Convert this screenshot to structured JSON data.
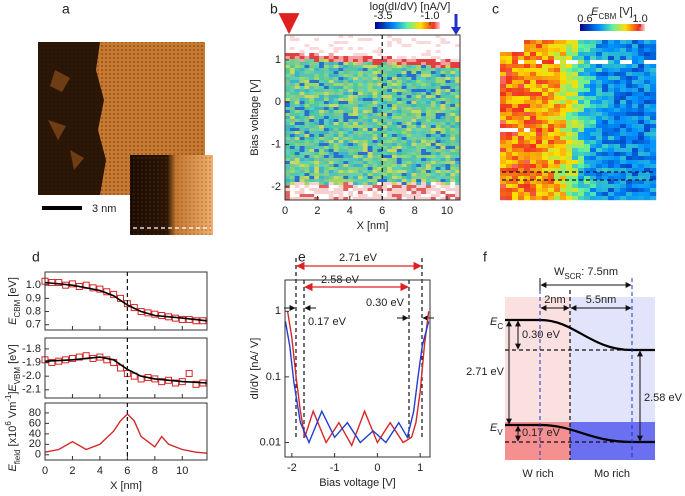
{
  "panel_labels": [
    "a",
    "b",
    "c",
    "d",
    "e",
    "f"
  ],
  "panel_a": {
    "scale_bar": "3 nm"
  },
  "panel_c": {
    "colorbar": {
      "title": [
        [
          "E",
          "italic"
        ],
        [
          "CBM",
          "sub"
        ],
        [
          " [V]",
          "normal"
        ]
      ],
      "clim": [
        0.564,
        1.036
      ],
      "ticks": [
        0.6,
        {
          "value": 1,
          "label": "1.0"
        }
      ]
    }
  },
  "chart_data": [
    {
      "type": "heatmap",
      "xlabel": "X [nm]",
      "ylabel": "Bias voltage [V]",
      "xlim": [
        0,
        10.8
      ],
      "ylim": [
        -2.31,
        1.59
      ],
      "xticks": [
        0,
        2,
        4,
        6,
        8,
        10
      ],
      "yticks": [
        1,
        0,
        -1,
        -2
      ],
      "vline": 6,
      "colorbar": {
        "title": "log(dI/dV) [nA/V]",
        "clim": [
          -3.93,
          -0.47
        ],
        "ticks": [
          -3.5,
          {
            "value": -1,
            "label": "-1.0"
          }
        ]
      }
    },
    {
      "type": "scatter",
      "ylabel": [
        [
          "E",
          "italic"
        ],
        [
          "CBM",
          "sub"
        ],
        [
          " [eV]",
          "normal"
        ]
      ],
      "xlim": [
        0,
        11.8
      ],
      "ylim": [
        0.66,
        1.1
      ],
      "yticks": [
        {
          "value": 1,
          "label": "1.0"
        },
        0.9,
        0.8,
        0.7
      ],
      "vline": 6,
      "color": "#d62728",
      "x": [
        0,
        0.5,
        1,
        1.5,
        2,
        2.5,
        3,
        3.5,
        4,
        4.5,
        5,
        5.5,
        6,
        6.5,
        7,
        7.5,
        8,
        8.5,
        9,
        9.5,
        10,
        10.5,
        11,
        11.5
      ],
      "values": [
        1.03,
        1.02,
        1.02,
        1.0,
        1.01,
        0.99,
        1.0,
        0.98,
        0.97,
        0.95,
        0.93,
        0.9,
        0.86,
        0.83,
        0.8,
        0.79,
        0.78,
        0.77,
        0.76,
        0.75,
        0.74,
        0.74,
        0.73,
        0.73
      ],
      "fit": {
        "color": "#000000",
        "x": [
          0,
          2,
          4,
          5,
          6,
          7,
          8,
          10,
          11.8
        ],
        "values": [
          1.02,
          1.0,
          0.96,
          0.92,
          0.85,
          0.8,
          0.77,
          0.75,
          0.73
        ]
      }
    },
    {
      "type": "scatter",
      "ylabel": [
        [
          "E",
          "italic"
        ],
        [
          "VBM",
          "sub"
        ],
        [
          " [eV]",
          "normal"
        ]
      ],
      "xlim": [
        0,
        11.8
      ],
      "ylim": [
        -2.16,
        -1.72
      ],
      "yticks": [
        -1.8,
        -1.9,
        {
          "value": -2,
          "label": "-2.0"
        },
        -2.1
      ],
      "vline": 6,
      "color": "#d62728",
      "x": [
        0,
        0.5,
        1,
        1.5,
        2,
        2.5,
        3,
        3.5,
        4,
        4.5,
        5,
        5.5,
        6,
        6.5,
        7,
        7.5,
        8,
        8.5,
        9,
        9.5,
        10,
        10.5,
        11,
        11.5
      ],
      "values": [
        -1.88,
        -1.9,
        -1.89,
        -1.88,
        -1.87,
        -1.86,
        -1.85,
        -1.87,
        -1.86,
        -1.88,
        -1.9,
        -1.94,
        -1.98,
        -2.0,
        -2.02,
        -2.01,
        -2.02,
        -2.04,
        -2.03,
        -2.05,
        -2.04,
        -1.98,
        -2.06,
        -2.05
      ],
      "fit": {
        "color": "#000000",
        "x": [
          0,
          2,
          4,
          5,
          6,
          7,
          8,
          10,
          11.8
        ],
        "values": [
          -1.89,
          -1.88,
          -1.86,
          -1.88,
          -1.95,
          -2.0,
          -2.02,
          -2.04,
          -2.05
        ]
      }
    },
    {
      "type": "line",
      "xlabel": "X [nm]",
      "ylabel": [
        [
          "E",
          "italic"
        ],
        [
          "field",
          "sub"
        ],
        [
          " [x10",
          "normal"
        ],
        [
          "6",
          "sup"
        ],
        [
          " Vm",
          "normal"
        ],
        [
          "-1",
          "sup"
        ],
        [
          "]",
          "normal"
        ]
      ],
      "xlim": [
        0,
        11.8
      ],
      "ylim": [
        -10,
        99
      ],
      "xticks": [
        0,
        2,
        4,
        6,
        8,
        10
      ],
      "yticks": [
        0,
        20,
        40,
        60,
        80
      ],
      "vline": 6,
      "series": [
        {
          "color": "#d62728",
          "x": [
            0,
            1,
            2,
            3,
            4,
            5,
            5.5,
            6,
            6.5,
            7,
            7.5,
            8,
            8.5,
            9,
            10,
            11,
            11.8
          ],
          "values": [
            5,
            10,
            25,
            10,
            20,
            45,
            65,
            78,
            65,
            35,
            25,
            15,
            35,
            20,
            10,
            5,
            3
          ]
        }
      ]
    },
    {
      "type": "line",
      "log_y": true,
      "xlabel": "Bias voltage [V]",
      "ylabel": "dI/dV [nA/ V]",
      "xlim": [
        -2.16,
        1.23
      ],
      "ylim": [
        0.006,
        3
      ],
      "xticks": [
        -2,
        -1,
        0,
        1
      ],
      "yticks": [
        1,
        0.1,
        0.01
      ],
      "series": [
        {
          "color": "#d62728",
          "x": [
            -2.1,
            -2.0,
            -1.9,
            -1.8,
            -1.7,
            -1.5,
            -1.2,
            -0.9,
            -0.6,
            -0.3,
            0,
            0.3,
            0.6,
            0.8,
            0.9,
            1.0,
            1.1,
            1.2
          ],
          "values": [
            1.0,
            0.4,
            0.1,
            0.03,
            0.012,
            0.03,
            0.01,
            0.02,
            0.009,
            0.03,
            0.01,
            0.02,
            0.01,
            0.012,
            0.02,
            0.06,
            0.3,
            1.0
          ]
        },
        {
          "color": "#1f3fd0",
          "x": [
            -2.15,
            -2.05,
            -1.95,
            -1.8,
            -1.6,
            -1.3,
            -1.0,
            -0.7,
            -0.4,
            -0.1,
            0.2,
            0.5,
            0.7,
            0.85,
            0.95,
            1.05,
            1.2
          ],
          "values": [
            0.7,
            0.3,
            0.08,
            0.02,
            0.01,
            0.03,
            0.012,
            0.02,
            0.01,
            0.015,
            0.01,
            0.02,
            0.012,
            0.03,
            0.1,
            0.3,
            0.7
          ]
        }
      ],
      "annotations": [
        "2.71 eV",
        "2.58 eV",
        "0.17 eV",
        "0.30 eV"
      ]
    }
  ],
  "panel_f": {
    "w_scr": [
      [
        "W",
        "normal"
      ],
      [
        "SCR",
        "sub"
      ],
      [
        ": 7.5nm",
        "normal"
      ]
    ],
    "widths": [
      "2nm",
      "5.5nm"
    ],
    "e_c": [
      [
        "E",
        "italic"
      ],
      [
        "C",
        "sub"
      ]
    ],
    "e_v": [
      [
        "E",
        "italic"
      ],
      [
        "V",
        "sub"
      ]
    ],
    "offsets": [
      "0.30 eV",
      "0.17 eV"
    ],
    "gaps": [
      "2.71 eV",
      "2.58 eV"
    ],
    "regions": [
      "W rich",
      "Mo rich"
    ]
  }
}
